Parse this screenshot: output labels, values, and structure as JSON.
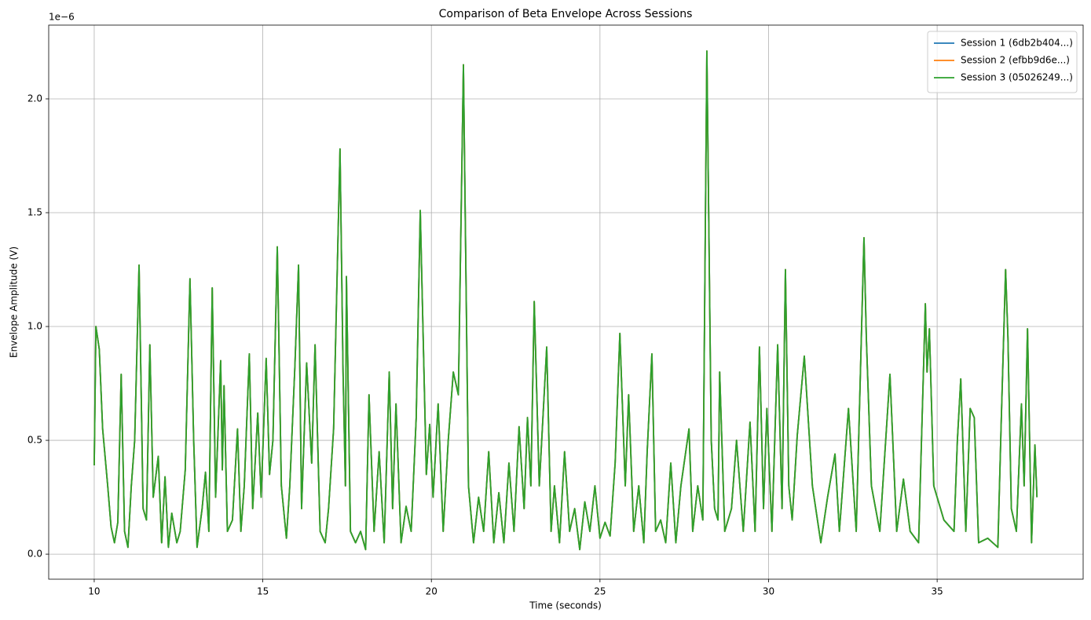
{
  "chart_data": {
    "type": "line",
    "title": "Comparison of Beta Envelope Across Sessions",
    "x_label": "Time (seconds)",
    "y_label": "Envelope Amplitude (V)",
    "y_offset_label": "1e−6",
    "grid": true,
    "legend_position": "upper-right",
    "xlim": [
      8.65,
      39.33
    ],
    "ylim": [
      -0.11,
      2.324
    ],
    "xticks": [
      10,
      15,
      20,
      25,
      30,
      35
    ],
    "yticks": [
      {
        "value": 0,
        "label": "0.0"
      },
      0.5,
      {
        "value": 1,
        "label": "1.0"
      },
      1.5,
      {
        "value": 2,
        "label": "2.0"
      }
    ],
    "x": [
      10.0,
      10.05,
      10.15,
      10.25,
      10.4,
      10.5,
      10.6,
      10.7,
      10.8,
      10.9,
      11.0,
      11.1,
      11.2,
      11.33,
      11.45,
      11.55,
      11.65,
      11.75,
      11.9,
      12.0,
      12.1,
      12.2,
      12.3,
      12.45,
      12.55,
      12.7,
      12.84,
      12.95,
      13.05,
      13.2,
      13.3,
      13.4,
      13.5,
      13.6,
      13.75,
      13.8,
      13.85,
      13.95,
      14.1,
      14.25,
      14.35,
      14.45,
      14.6,
      14.7,
      14.85,
      14.95,
      15.1,
      15.2,
      15.3,
      15.43,
      15.55,
      15.7,
      15.8,
      15.95,
      16.06,
      16.15,
      16.3,
      16.45,
      16.55,
      16.7,
      16.85,
      16.95,
      17.1,
      17.29,
      17.38,
      17.45,
      17.48,
      17.6,
      17.75,
      17.9,
      18.05,
      18.15,
      18.3,
      18.45,
      18.6,
      18.75,
      18.85,
      18.95,
      19.1,
      19.25,
      19.4,
      19.55,
      19.67,
      19.85,
      19.95,
      20.05,
      20.2,
      20.35,
      20.5,
      20.65,
      20.8,
      20.95,
      21.1,
      21.25,
      21.4,
      21.55,
      21.7,
      21.85,
      22.0,
      22.15,
      22.3,
      22.45,
      22.6,
      22.75,
      22.85,
      22.95,
      23.05,
      23.2,
      23.42,
      23.55,
      23.65,
      23.8,
      23.95,
      24.1,
      24.25,
      24.4,
      24.55,
      24.7,
      24.85,
      25.0,
      25.15,
      25.3,
      25.45,
      25.59,
      25.75,
      25.85,
      26.0,
      26.15,
      26.3,
      26.4,
      26.54,
      26.65,
      26.8,
      26.95,
      27.1,
      27.25,
      27.4,
      27.64,
      27.75,
      27.9,
      28.05,
      28.17,
      28.3,
      28.4,
      28.5,
      28.55,
      28.7,
      28.9,
      29.05,
      29.25,
      29.45,
      29.6,
      29.73,
      29.85,
      29.95,
      30.1,
      30.27,
      30.4,
      30.5,
      30.6,
      30.7,
      30.85,
      31.06,
      31.3,
      31.55,
      31.75,
      31.97,
      32.1,
      32.37,
      32.6,
      32.83,
      32.9,
      33.05,
      33.3,
      33.6,
      33.8,
      34.0,
      34.2,
      34.45,
      34.65,
      34.7,
      34.77,
      34.9,
      35.2,
      35.5,
      35.6,
      35.7,
      35.85,
      35.98,
      36.1,
      36.23,
      36.5,
      36.8,
      36.9,
      37.03,
      37.1,
      37.2,
      37.35,
      37.5,
      37.58,
      37.68,
      37.8,
      37.9,
      37.96
    ],
    "series": [
      {
        "name": "Session 1 (6db2b404...)",
        "color": "#1f77b4",
        "values": [
          0.39,
          1.0,
          0.9,
          0.55,
          0.3,
          0.12,
          0.05,
          0.14,
          0.79,
          0.1,
          0.03,
          0.3,
          0.5,
          1.27,
          0.2,
          0.15,
          0.92,
          0.25,
          0.43,
          0.05,
          0.34,
          0.03,
          0.18,
          0.05,
          0.1,
          0.37,
          1.21,
          0.5,
          0.03,
          0.2,
          0.36,
          0.1,
          1.17,
          0.25,
          0.85,
          0.37,
          0.74,
          0.1,
          0.15,
          0.55,
          0.1,
          0.3,
          0.88,
          0.2,
          0.62,
          0.25,
          0.86,
          0.35,
          0.5,
          1.35,
          0.3,
          0.07,
          0.3,
          0.82,
          1.27,
          0.2,
          0.84,
          0.4,
          0.92,
          0.1,
          0.05,
          0.2,
          0.55,
          1.78,
          0.8,
          0.3,
          1.22,
          0.1,
          0.05,
          0.1,
          0.02,
          0.7,
          0.1,
          0.45,
          0.05,
          0.8,
          0.2,
          0.66,
          0.05,
          0.21,
          0.1,
          0.6,
          1.51,
          0.35,
          0.57,
          0.25,
          0.66,
          0.1,
          0.5,
          0.8,
          0.7,
          2.15,
          0.3,
          0.05,
          0.25,
          0.1,
          0.45,
          0.05,
          0.27,
          0.05,
          0.4,
          0.1,
          0.56,
          0.2,
          0.6,
          0.3,
          1.11,
          0.3,
          0.91,
          0.1,
          0.3,
          0.05,
          0.45,
          0.1,
          0.2,
          0.02,
          0.23,
          0.1,
          0.3,
          0.07,
          0.14,
          0.08,
          0.4,
          0.97,
          0.3,
          0.7,
          0.1,
          0.3,
          0.05,
          0.45,
          0.88,
          0.1,
          0.15,
          0.05,
          0.4,
          0.05,
          0.3,
          0.55,
          0.1,
          0.3,
          0.15,
          2.21,
          0.5,
          0.2,
          0.15,
          0.8,
          0.1,
          0.2,
          0.5,
          0.1,
          0.58,
          0.1,
          0.91,
          0.2,
          0.64,
          0.1,
          0.92,
          0.2,
          1.25,
          0.3,
          0.15,
          0.52,
          0.87,
          0.3,
          0.05,
          0.25,
          0.44,
          0.1,
          0.64,
          0.1,
          1.39,
          0.95,
          0.3,
          0.1,
          0.79,
          0.1,
          0.33,
          0.1,
          0.05,
          1.1,
          0.8,
          0.99,
          0.3,
          0.15,
          0.1,
          0.5,
          0.77,
          0.1,
          0.64,
          0.6,
          0.05,
          0.07,
          0.03,
          0.58,
          1.25,
          0.95,
          0.2,
          0.1,
          0.66,
          0.3,
          0.99,
          0.05,
          0.48,
          0.25
        ]
      },
      {
        "name": "Session 2 (efbb9d6e...)",
        "color": "#ff7f0e",
        "values": [
          0.39,
          1.0,
          0.9,
          0.55,
          0.3,
          0.12,
          0.05,
          0.14,
          0.79,
          0.1,
          0.03,
          0.3,
          0.5,
          1.27,
          0.2,
          0.15,
          0.92,
          0.25,
          0.43,
          0.05,
          0.34,
          0.03,
          0.18,
          0.05,
          0.1,
          0.37,
          1.21,
          0.5,
          0.03,
          0.2,
          0.36,
          0.1,
          1.17,
          0.25,
          0.85,
          0.37,
          0.74,
          0.1,
          0.15,
          0.55,
          0.1,
          0.3,
          0.88,
          0.2,
          0.62,
          0.25,
          0.86,
          0.35,
          0.5,
          1.35,
          0.3,
          0.07,
          0.3,
          0.82,
          1.27,
          0.2,
          0.84,
          0.4,
          0.92,
          0.1,
          0.05,
          0.2,
          0.55,
          1.78,
          0.8,
          0.3,
          1.22,
          0.1,
          0.05,
          0.1,
          0.02,
          0.7,
          0.1,
          0.45,
          0.05,
          0.8,
          0.2,
          0.66,
          0.05,
          0.21,
          0.1,
          0.6,
          1.51,
          0.35,
          0.57,
          0.25,
          0.66,
          0.1,
          0.5,
          0.8,
          0.7,
          2.15,
          0.3,
          0.05,
          0.25,
          0.1,
          0.45,
          0.05,
          0.27,
          0.05,
          0.4,
          0.1,
          0.56,
          0.2,
          0.6,
          0.3,
          1.11,
          0.3,
          0.91,
          0.1,
          0.3,
          0.05,
          0.45,
          0.1,
          0.2,
          0.02,
          0.23,
          0.1,
          0.3,
          0.07,
          0.14,
          0.08,
          0.4,
          0.97,
          0.3,
          0.7,
          0.1,
          0.3,
          0.05,
          0.45,
          0.88,
          0.1,
          0.15,
          0.05,
          0.4,
          0.05,
          0.3,
          0.55,
          0.1,
          0.3,
          0.15,
          2.21,
          0.5,
          0.2,
          0.15,
          0.8,
          0.1,
          0.2,
          0.5,
          0.1,
          0.58,
          0.1,
          0.91,
          0.2,
          0.64,
          0.1,
          0.92,
          0.2,
          1.25,
          0.3,
          0.15,
          0.52,
          0.87,
          0.3,
          0.05,
          0.25,
          0.44,
          0.1,
          0.64,
          0.1,
          1.39,
          0.95,
          0.3,
          0.1,
          0.79,
          0.1,
          0.33,
          0.1,
          0.05,
          1.1,
          0.8,
          0.99,
          0.3,
          0.15,
          0.1,
          0.5,
          0.77,
          0.1,
          0.64,
          0.6,
          0.05,
          0.07,
          0.03,
          0.58,
          1.25,
          0.95,
          0.2,
          0.1,
          0.66,
          0.3,
          0.99,
          0.05,
          0.48,
          0.25
        ]
      },
      {
        "name": "Session 3 (05026249...)",
        "color": "#2ca02c",
        "values": [
          0.39,
          1.0,
          0.9,
          0.55,
          0.3,
          0.12,
          0.05,
          0.14,
          0.79,
          0.1,
          0.03,
          0.3,
          0.5,
          1.27,
          0.2,
          0.15,
          0.92,
          0.25,
          0.43,
          0.05,
          0.34,
          0.03,
          0.18,
          0.05,
          0.1,
          0.37,
          1.21,
          0.5,
          0.03,
          0.2,
          0.36,
          0.1,
          1.17,
          0.25,
          0.85,
          0.37,
          0.74,
          0.1,
          0.15,
          0.55,
          0.1,
          0.3,
          0.88,
          0.2,
          0.62,
          0.25,
          0.86,
          0.35,
          0.5,
          1.35,
          0.3,
          0.07,
          0.3,
          0.82,
          1.27,
          0.2,
          0.84,
          0.4,
          0.92,
          0.1,
          0.05,
          0.2,
          0.55,
          1.78,
          0.8,
          0.3,
          1.22,
          0.1,
          0.05,
          0.1,
          0.02,
          0.7,
          0.1,
          0.45,
          0.05,
          0.8,
          0.2,
          0.66,
          0.05,
          0.21,
          0.1,
          0.6,
          1.51,
          0.35,
          0.57,
          0.25,
          0.66,
          0.1,
          0.5,
          0.8,
          0.7,
          2.15,
          0.3,
          0.05,
          0.25,
          0.1,
          0.45,
          0.05,
          0.27,
          0.05,
          0.4,
          0.1,
          0.56,
          0.2,
          0.6,
          0.3,
          1.11,
          0.3,
          0.91,
          0.1,
          0.3,
          0.05,
          0.45,
          0.1,
          0.2,
          0.02,
          0.23,
          0.1,
          0.3,
          0.07,
          0.14,
          0.08,
          0.4,
          0.97,
          0.3,
          0.7,
          0.1,
          0.3,
          0.05,
          0.45,
          0.88,
          0.1,
          0.15,
          0.05,
          0.4,
          0.05,
          0.3,
          0.55,
          0.1,
          0.3,
          0.15,
          2.21,
          0.5,
          0.2,
          0.15,
          0.8,
          0.1,
          0.2,
          0.5,
          0.1,
          0.58,
          0.1,
          0.91,
          0.2,
          0.64,
          0.1,
          0.92,
          0.2,
          1.25,
          0.3,
          0.15,
          0.52,
          0.87,
          0.3,
          0.05,
          0.25,
          0.44,
          0.1,
          0.64,
          0.1,
          1.39,
          0.95,
          0.3,
          0.1,
          0.79,
          0.1,
          0.33,
          0.1,
          0.05,
          1.1,
          0.8,
          0.99,
          0.3,
          0.15,
          0.1,
          0.5,
          0.77,
          0.1,
          0.64,
          0.6,
          0.05,
          0.07,
          0.03,
          0.58,
          1.25,
          0.95,
          0.2,
          0.1,
          0.66,
          0.3,
          0.99,
          0.05,
          0.48,
          0.25
        ]
      }
    ]
  }
}
